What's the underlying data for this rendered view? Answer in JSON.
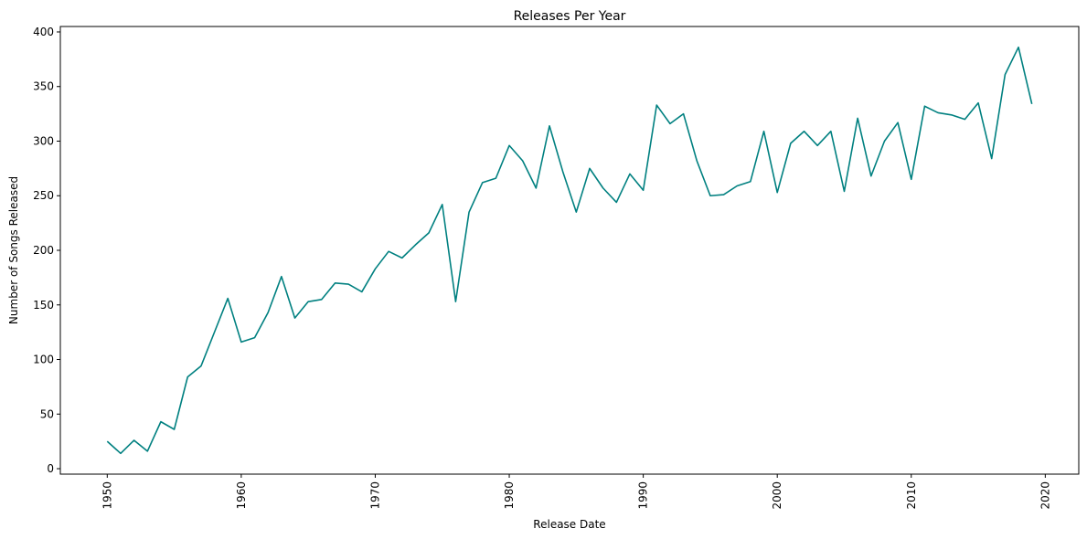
{
  "chart_data": {
    "type": "line",
    "title": "Releases Per Year",
    "xlabel": "Release Date",
    "ylabel": "Number of Songs Released",
    "xlim": [
      1946.5,
      2022.5
    ],
    "ylim": [
      -5,
      405
    ],
    "x_ticks": [
      1950,
      1960,
      1970,
      1980,
      1990,
      2000,
      2010,
      2020
    ],
    "x_tick_labels": [
      "1950",
      "1960",
      "1970",
      "1980",
      "1990",
      "2000",
      "2010",
      "2020"
    ],
    "x_tick_rotation": 90,
    "y_ticks": [
      0,
      50,
      100,
      150,
      200,
      250,
      300,
      350,
      400
    ],
    "y_tick_labels": [
      "0",
      "50",
      "100",
      "150",
      "200",
      "250",
      "300",
      "350",
      "400"
    ],
    "grid": false,
    "legend": "none",
    "series": [
      {
        "color": "#008080",
        "x": [
          1950,
          1951,
          1952,
          1953,
          1954,
          1955,
          1956,
          1957,
          1958,
          1959,
          1960,
          1961,
          1962,
          1963,
          1964,
          1965,
          1966,
          1967,
          1968,
          1969,
          1970,
          1971,
          1972,
          1973,
          1974,
          1975,
          1976,
          1977,
          1978,
          1979,
          1980,
          1981,
          1982,
          1983,
          1984,
          1985,
          1986,
          1987,
          1988,
          1989,
          1990,
          1991,
          1992,
          1993,
          1994,
          1995,
          1996,
          1997,
          1998,
          1999,
          2000,
          2001,
          2002,
          2003,
          2004,
          2005,
          2006,
          2007,
          2008,
          2009,
          2010,
          2011,
          2012,
          2013,
          2014,
          2015,
          2016,
          2017,
          2018,
          2019
        ],
        "values": [
          25,
          14,
          26,
          16,
          43,
          36,
          84,
          94,
          125,
          156,
          116,
          120,
          143,
          176,
          138,
          153,
          155,
          170,
          169,
          162,
          183,
          199,
          193,
          205,
          216,
          242,
          153,
          235,
          262,
          266,
          296,
          282,
          257,
          314,
          272,
          235,
          275,
          257,
          244,
          270,
          255,
          333,
          316,
          325,
          282,
          250,
          251,
          259,
          263,
          309,
          253,
          298,
          309,
          296,
          309,
          254,
          321,
          268,
          300,
          317,
          265,
          332,
          326,
          324,
          320,
          335,
          284,
          361,
          386,
          334
        ]
      }
    ]
  }
}
